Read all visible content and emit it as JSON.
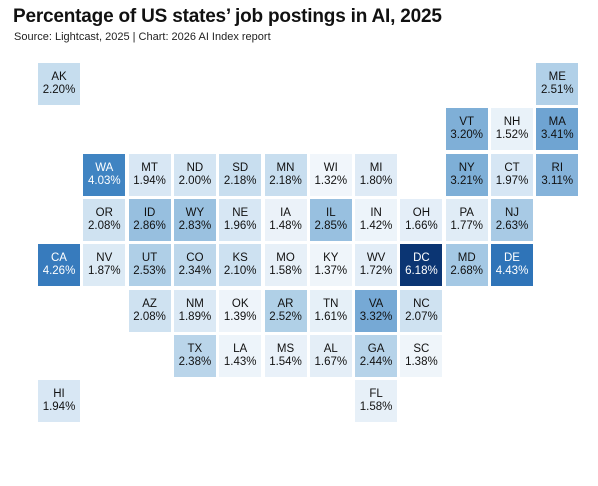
{
  "header": {
    "title": "Percentage of US states’ job postings in AI, 2025",
    "subtitle": "Source: Lightcast, 2025 | Chart: 2026 AI Index report"
  },
  "colors": {
    "scale_low": "#f1f6fb",
    "scale_high": "#0b3573",
    "dark_text": "#111111",
    "light_text": "#ffffff"
  },
  "chart_data": {
    "type": "heatmap",
    "layout": "US state tile grid map",
    "unit": "%",
    "tiles": [
      {
        "state": "AK",
        "label": "2.20%",
        "value": 2.2,
        "row": 0,
        "col": 0
      },
      {
        "state": "ME",
        "label": "2.51%",
        "value": 2.51,
        "row": 0,
        "col": 11
      },
      {
        "state": "VT",
        "label": "3.20%",
        "value": 3.2,
        "row": 1,
        "col": 9
      },
      {
        "state": "NH",
        "label": "1.52%",
        "value": 1.52,
        "row": 1,
        "col": 10
      },
      {
        "state": "MA",
        "label": "3.41%",
        "value": 3.41,
        "row": 1,
        "col": 11
      },
      {
        "state": "WA",
        "label": "4.03%",
        "value": 4.03,
        "row": 2,
        "col": 1
      },
      {
        "state": "MT",
        "label": "1.94%",
        "value": 1.94,
        "row": 2,
        "col": 2
      },
      {
        "state": "ND",
        "label": "2.00%",
        "value": 2.0,
        "row": 2,
        "col": 3
      },
      {
        "state": "SD",
        "label": "2.18%",
        "value": 2.18,
        "row": 2,
        "col": 4
      },
      {
        "state": "MN",
        "label": "2.18%",
        "value": 2.18,
        "row": 2,
        "col": 5
      },
      {
        "state": "WI",
        "label": "1.32%",
        "value": 1.32,
        "row": 2,
        "col": 6
      },
      {
        "state": "MI",
        "label": "1.80%",
        "value": 1.8,
        "row": 2,
        "col": 7
      },
      {
        "state": "NY",
        "label": "3.21%",
        "value": 3.21,
        "row": 2,
        "col": 9
      },
      {
        "state": "CT",
        "label": "1.97%",
        "value": 1.97,
        "row": 2,
        "col": 10
      },
      {
        "state": "RI",
        "label": "3.11%",
        "value": 3.11,
        "row": 2,
        "col": 11
      },
      {
        "state": "OR",
        "label": "2.08%",
        "value": 2.08,
        "row": 3,
        "col": 1
      },
      {
        "state": "ID",
        "label": "2.86%",
        "value": 2.86,
        "row": 3,
        "col": 2
      },
      {
        "state": "WY",
        "label": "2.83%",
        "value": 2.83,
        "row": 3,
        "col": 3
      },
      {
        "state": "NE",
        "label": "1.96%",
        "value": 1.96,
        "row": 3,
        "col": 4
      },
      {
        "state": "IA",
        "label": "1.48%",
        "value": 1.48,
        "row": 3,
        "col": 5
      },
      {
        "state": "IL",
        "label": "2.85%",
        "value": 2.85,
        "row": 3,
        "col": 6
      },
      {
        "state": "IN",
        "label": "1.42%",
        "value": 1.42,
        "row": 3,
        "col": 7
      },
      {
        "state": "OH",
        "label": "1.66%",
        "value": 1.66,
        "row": 3,
        "col": 8
      },
      {
        "state": "PA",
        "label": "1.77%",
        "value": 1.77,
        "row": 3,
        "col": 9
      },
      {
        "state": "NJ",
        "label": "2.63%",
        "value": 2.63,
        "row": 3,
        "col": 10
      },
      {
        "state": "CA",
        "label": "4.26%",
        "value": 4.26,
        "row": 4,
        "col": 0
      },
      {
        "state": "NV",
        "label": "1.87%",
        "value": 1.87,
        "row": 4,
        "col": 1
      },
      {
        "state": "UT",
        "label": "2.53%",
        "value": 2.53,
        "row": 4,
        "col": 2
      },
      {
        "state": "CO",
        "label": "2.34%",
        "value": 2.34,
        "row": 4,
        "col": 3
      },
      {
        "state": "KS",
        "label": "2.10%",
        "value": 2.1,
        "row": 4,
        "col": 4
      },
      {
        "state": "MO",
        "label": "1.58%",
        "value": 1.58,
        "row": 4,
        "col": 5
      },
      {
        "state": "KY",
        "label": "1.37%",
        "value": 1.37,
        "row": 4,
        "col": 6
      },
      {
        "state": "WV",
        "label": "1.72%",
        "value": 1.72,
        "row": 4,
        "col": 7
      },
      {
        "state": "DC",
        "label": "6.18%",
        "value": 6.18,
        "row": 4,
        "col": 8
      },
      {
        "state": "MD",
        "label": "2.68%",
        "value": 2.68,
        "row": 4,
        "col": 9
      },
      {
        "state": "DE",
        "label": "4.43%",
        "value": 4.43,
        "row": 4,
        "col": 10
      },
      {
        "state": "AZ",
        "label": "2.08%",
        "value": 2.08,
        "row": 5,
        "col": 2
      },
      {
        "state": "NM",
        "label": "1.89%",
        "value": 1.89,
        "row": 5,
        "col": 3
      },
      {
        "state": "OK",
        "label": "1.39%",
        "value": 1.39,
        "row": 5,
        "col": 4
      },
      {
        "state": "AR",
        "label": "2.52%",
        "value": 2.52,
        "row": 5,
        "col": 5
      },
      {
        "state": "TN",
        "label": "1.61%",
        "value": 1.61,
        "row": 5,
        "col": 6
      },
      {
        "state": "VA",
        "label": "3.32%",
        "value": 3.32,
        "row": 5,
        "col": 7
      },
      {
        "state": "NC",
        "label": "2.07%",
        "value": 2.07,
        "row": 5,
        "col": 8
      },
      {
        "state": "TX",
        "label": "2.38%",
        "value": 2.38,
        "row": 6,
        "col": 3
      },
      {
        "state": "LA",
        "label": "1.43%",
        "value": 1.43,
        "row": 6,
        "col": 4
      },
      {
        "state": "MS",
        "label": "1.54%",
        "value": 1.54,
        "row": 6,
        "col": 5
      },
      {
        "state": "AL",
        "label": "1.67%",
        "value": 1.67,
        "row": 6,
        "col": 6
      },
      {
        "state": "GA",
        "label": "2.44%",
        "value": 2.44,
        "row": 6,
        "col": 7
      },
      {
        "state": "SC",
        "label": "1.38%",
        "value": 1.38,
        "row": 6,
        "col": 8
      },
      {
        "state": "HI",
        "label": "1.94%",
        "value": 1.94,
        "row": 7,
        "col": 0
      },
      {
        "state": "FL",
        "label": "1.58%",
        "value": 1.58,
        "row": 7,
        "col": 7
      }
    ]
  }
}
